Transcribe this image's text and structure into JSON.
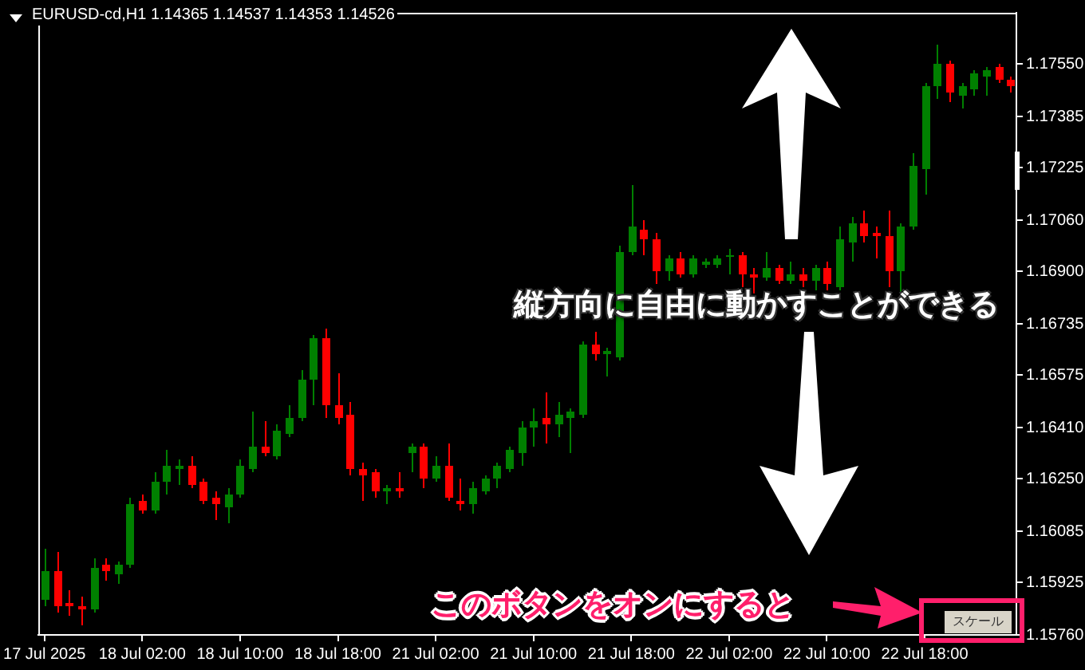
{
  "chart_data": {
    "type": "candlestick",
    "title": "EURUSD-cd,H1  1.14365 1.14537 1.14353 1.14526",
    "categories": [
      "17 Jul 2025",
      null,
      null,
      null,
      null,
      null,
      null,
      null,
      "18 Jul 02:00",
      null,
      null,
      null,
      null,
      null,
      null,
      null,
      "18 Jul 10:00",
      null,
      null,
      null,
      null,
      null,
      null,
      null,
      "18 Jul 18:00",
      null,
      null,
      null,
      null,
      null,
      null,
      null,
      "21 Jul 02:00",
      null,
      null,
      null,
      null,
      null,
      null,
      null,
      "21 Jul 10:00",
      null,
      null,
      null,
      null,
      null,
      null,
      null,
      "21 Jul 18:00",
      null,
      null,
      null,
      null,
      null,
      null,
      null,
      "22 Jul 02:00",
      null,
      null,
      null,
      null,
      null,
      null,
      null,
      "22 Jul 10:00",
      null,
      null,
      null,
      null,
      null,
      null,
      null,
      "22 Jul 18:00",
      null,
      null,
      null,
      null,
      null,
      null,
      null
    ],
    "ohlc": [
      [
        1.1587,
        1.1603,
        1.1585,
        1.1596
      ],
      [
        1.1596,
        1.1602,
        1.1583,
        1.1585
      ],
      [
        1.1586,
        1.159,
        1.1582,
        1.1585
      ],
      [
        1.1585,
        1.1588,
        1.1579,
        1.1584
      ],
      [
        1.1584,
        1.16,
        1.1583,
        1.1597
      ],
      [
        1.1598,
        1.16,
        1.1593,
        1.1596
      ],
      [
        1.1595,
        1.1599,
        1.1592,
        1.1598
      ],
      [
        1.1598,
        1.1619,
        1.1597,
        1.1617
      ],
      [
        1.1618,
        1.162,
        1.1614,
        1.1615
      ],
      [
        1.1615,
        1.1627,
        1.1614,
        1.1624
      ],
      [
        1.1624,
        1.1634,
        1.162,
        1.1629
      ],
      [
        1.1628,
        1.1631,
        1.1623,
        1.1629
      ],
      [
        1.1629,
        1.1632,
        1.1622,
        1.1623
      ],
      [
        1.1624,
        1.1625,
        1.1617,
        1.1618
      ],
      [
        1.1619,
        1.1621,
        1.1612,
        1.1617
      ],
      [
        1.1616,
        1.1622,
        1.1611,
        1.162
      ],
      [
        1.162,
        1.1631,
        1.1619,
        1.1629
      ],
      [
        1.1628,
        1.1646,
        1.1627,
        1.1635
      ],
      [
        1.1635,
        1.1643,
        1.1632,
        1.1633
      ],
      [
        1.1632,
        1.1642,
        1.1631,
        1.164
      ],
      [
        1.1639,
        1.1648,
        1.1638,
        1.1644
      ],
      [
        1.1644,
        1.1659,
        1.1643,
        1.1656
      ],
      [
        1.1656,
        1.167,
        1.1648,
        1.1669
      ],
      [
        1.1669,
        1.1672,
        1.1644,
        1.1648
      ],
      [
        1.1648,
        1.1658,
        1.1642,
        1.1644
      ],
      [
        1.1645,
        1.1649,
        1.1626,
        1.1628
      ],
      [
        1.1628,
        1.163,
        1.1618,
        1.1626
      ],
      [
        1.1627,
        1.1628,
        1.1619,
        1.1621
      ],
      [
        1.1621,
        1.1623,
        1.1617,
        1.1622
      ],
      [
        1.1622,
        1.1627,
        1.1619,
        1.1621
      ],
      [
        1.1633,
        1.1636,
        1.1627,
        1.1635
      ],
      [
        1.1635,
        1.1636,
        1.1622,
        1.1625
      ],
      [
        1.1625,
        1.1632,
        1.1624,
        1.1629
      ],
      [
        1.1629,
        1.1636,
        1.1618,
        1.1619
      ],
      [
        1.1618,
        1.1625,
        1.1615,
        1.1617
      ],
      [
        1.1617,
        1.1624,
        1.1614,
        1.1622
      ],
      [
        1.1621,
        1.1626,
        1.162,
        1.1625
      ],
      [
        1.1625,
        1.163,
        1.1622,
        1.1629
      ],
      [
        1.1628,
        1.1635,
        1.1627,
        1.1634
      ],
      [
        1.1633,
        1.1643,
        1.1629,
        1.1641
      ],
      [
        1.1641,
        1.1647,
        1.1635,
        1.1643
      ],
      [
        1.1644,
        1.1652,
        1.1636,
        1.1642
      ],
      [
        1.1642,
        1.1649,
        1.1638,
        1.1645
      ],
      [
        1.1644,
        1.1647,
        1.1633,
        1.1646
      ],
      [
        1.1645,
        1.1668,
        1.1644,
        1.1667
      ],
      [
        1.1667,
        1.1671,
        1.1662,
        1.1664
      ],
      [
        1.1664,
        1.1666,
        1.1657,
        1.1665
      ],
      [
        1.1663,
        1.1698,
        1.1662,
        1.1696
      ],
      [
        1.1696,
        1.1717,
        1.1695,
        1.1704
      ],
      [
        1.1703,
        1.1706,
        1.1695,
        1.17
      ],
      [
        1.17,
        1.1702,
        1.1686,
        1.169
      ],
      [
        1.169,
        1.1695,
        1.1687,
        1.1694
      ],
      [
        1.1694,
        1.1696,
        1.1688,
        1.1689
      ],
      [
        1.1689,
        1.1695,
        1.1688,
        1.1694
      ],
      [
        1.1692,
        1.1694,
        1.1691,
        1.1693
      ],
      [
        1.1692,
        1.1695,
        1.1691,
        1.1694
      ],
      [
        1.1695,
        1.1697,
        1.1689,
        1.1695
      ],
      [
        1.1695,
        1.1696,
        1.1685,
        1.1689
      ],
      [
        1.1689,
        1.1691,
        1.1683,
        1.1688
      ],
      [
        1.1688,
        1.1696,
        1.1687,
        1.1691
      ],
      [
        1.1691,
        1.1692,
        1.1686,
        1.1687
      ],
      [
        1.1687,
        1.1693,
        1.1686,
        1.1689
      ],
      [
        1.1689,
        1.1691,
        1.1685,
        1.1687
      ],
      [
        1.1687,
        1.1692,
        1.1684,
        1.1691
      ],
      [
        1.1691,
        1.1693,
        1.1684,
        1.1686
      ],
      [
        1.1685,
        1.1704,
        1.1684,
        1.17
      ],
      [
        1.1699,
        1.1707,
        1.1693,
        1.1705
      ],
      [
        1.1705,
        1.1709,
        1.1699,
        1.1701
      ],
      [
        1.1702,
        1.1704,
        1.1694,
        1.1701
      ],
      [
        1.1701,
        1.1709,
        1.1685,
        1.169
      ],
      [
        1.169,
        1.1705,
        1.1683,
        1.1704
      ],
      [
        1.1704,
        1.1727,
        1.1703,
        1.1723
      ],
      [
        1.1722,
        1.1749,
        1.1714,
        1.1748
      ],
      [
        1.1748,
        1.1761,
        1.1744,
        1.1755
      ],
      [
        1.1755,
        1.1756,
        1.1743,
        1.1746
      ],
      [
        1.1745,
        1.1749,
        1.1741,
        1.1748
      ],
      [
        1.1747,
        1.1753,
        1.1745,
        1.1752
      ],
      [
        1.1751,
        1.1754,
        1.1745,
        1.1753
      ],
      [
        1.1754,
        1.1755,
        1.1749,
        1.175
      ],
      [
        1.175,
        1.1751,
        1.1746,
        1.1748
      ]
    ],
    "colors": [
      "#008000",
      "#ff0000",
      "#ff0000",
      "#ff0000",
      "#008000",
      "#ff0000",
      "#008000",
      "#008000",
      "#ff0000",
      "#008000",
      "#008000",
      "#008000",
      "#ff0000",
      "#ff0000",
      "#ff0000",
      "#008000",
      "#008000",
      "#008000",
      "#ff0000",
      "#008000",
      "#008000",
      "#008000",
      "#008000",
      "#ff0000",
      "#ff0000",
      "#ff0000",
      "#ff0000",
      "#ff0000",
      "#008000",
      "#ff0000",
      "#008000",
      "#ff0000",
      "#008000",
      "#ff0000",
      "#ff0000",
      "#008000",
      "#008000",
      "#008000",
      "#008000",
      "#008000",
      "#008000",
      "#ff0000",
      "#008000",
      "#008000",
      "#008000",
      "#ff0000",
      "#008000",
      "#008000",
      "#008000",
      "#ff0000",
      "#ff0000",
      "#008000",
      "#ff0000",
      "#008000",
      "#008000",
      "#008000",
      "#008000",
      "#ff0000",
      "#ff0000",
      "#008000",
      "#ff0000",
      "#008000",
      "#ff0000",
      "#008000",
      "#ff0000",
      "#008000",
      "#008000",
      "#ff0000",
      "#ff0000",
      "#ff0000",
      "#008000",
      "#008000",
      "#008000",
      "#008000",
      "#ff0000",
      "#008000",
      "#008000",
      "#008000",
      "#ff0000",
      "#ff0000"
    ],
    "ylim": [
      1.1576,
      1.1771
    ],
    "yticks": [
      {
        "value": 1.1755,
        "label": "1.17550"
      },
      {
        "value": 1.17385,
        "label": "1.17385"
      },
      {
        "value": 1.17225,
        "label": "1.17225"
      },
      {
        "value": 1.1706,
        "label": "1.17060"
      },
      {
        "value": 1.169,
        "label": "1.16900"
      },
      {
        "value": 1.16735,
        "label": "1.16735"
      },
      {
        "value": 1.16575,
        "label": "1.16575"
      },
      {
        "value": 1.1641,
        "label": "1.16410"
      },
      {
        "value": 1.1625,
        "label": "1.16250"
      },
      {
        "value": 1.16085,
        "label": "1.16085"
      },
      {
        "value": 1.15925,
        "label": "1.15925"
      },
      {
        "value": 1.1576,
        "label": "1.15760"
      }
    ],
    "grid": false,
    "legend": false,
    "annotations": [
      "縦方向に自由に動かすことができる",
      "このボタンをオンにすると",
      "スケール"
    ]
  }
}
